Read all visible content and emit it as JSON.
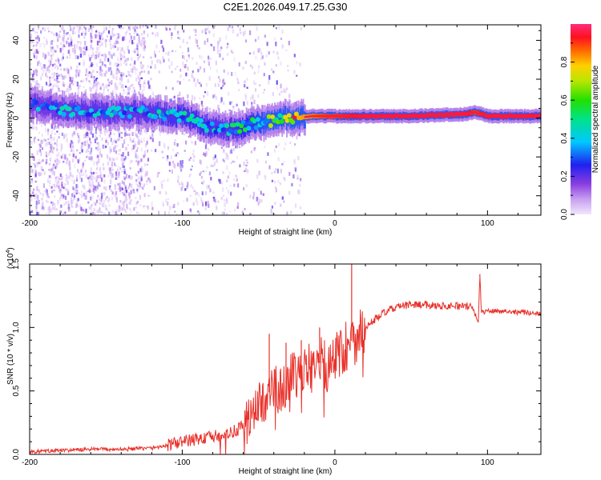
{
  "title": "C2E1.2026.049.17.25.G30",
  "colors": {
    "snr_line": "#e8312a",
    "ridge_core": "#e8204f",
    "background": "#ffffff"
  },
  "chart_data": [
    {
      "type": "heatmap",
      "xlabel": "Height of straight line (km)",
      "ylabel": "Frequency (Hz)",
      "xlim": [
        -200,
        135
      ],
      "ylim": [
        -50,
        48
      ],
      "xticks": [
        -200,
        -100,
        0,
        100
      ],
      "yticks": [
        -40,
        -20,
        0,
        20,
        40
      ],
      "xtick_labels": [
        "-200",
        "-100",
        "0",
        "100"
      ],
      "ytick_labels": [
        "-40",
        "-20",
        "0",
        "20",
        "40"
      ],
      "colorbar": {
        "label": "Normalized spectral amplitude",
        "range": [
          0.0,
          1.0
        ],
        "ticks": [
          0.0,
          0.2,
          0.4,
          0.6,
          0.8
        ],
        "tick_labels": [
          "0.0",
          "0.2",
          "0.4",
          "0.6",
          "0.8"
        ],
        "colormap": "rainbow"
      },
      "ridge": {
        "description_points_x": [
          -200,
          -175,
          -150,
          -125,
          -100,
          -85,
          -75,
          -65,
          -55,
          -45,
          -35,
          -25,
          -15,
          -5,
          0,
          20,
          50,
          85,
          92,
          100,
          135
        ],
        "center_freq_hz": [
          7,
          4,
          3,
          3,
          1,
          -4,
          -5,
          -6,
          -3,
          -2,
          0,
          0,
          1,
          1,
          1,
          1,
          1,
          2,
          3,
          1,
          1
        ],
        "peak_amplitude": [
          0.3,
          0.35,
          0.35,
          0.35,
          0.4,
          0.4,
          0.35,
          0.4,
          0.45,
          0.5,
          0.6,
          0.8,
          0.85,
          0.9,
          0.9,
          0.95,
          0.95,
          0.95,
          0.9,
          0.95,
          0.95
        ]
      }
    },
    {
      "type": "line",
      "xlabel": "Height of straight line (km)",
      "ylabel": "SNR (10 * v/v)",
      "scale_label": "(x10",
      "scale_exp": "4",
      "scale_close": ")",
      "xlim": [
        -200,
        135
      ],
      "ylim": [
        0.0,
        1.5
      ],
      "xticks": [
        -200,
        -100,
        0,
        100
      ],
      "yticks": [
        0.0,
        0.5,
        1.0,
        1.5
      ],
      "xtick_labels": [
        "-200",
        "-100",
        "0",
        "100"
      ],
      "ytick_labels": [
        "0.0",
        "0.5",
        "1.0",
        "1.5"
      ],
      "series": [
        {
          "name": "SNR",
          "x": [
            -200,
            -180,
            -160,
            -140,
            -120,
            -110,
            -100,
            -90,
            -80,
            -70,
            -60,
            -55,
            -50,
            -45,
            -40,
            -35,
            -30,
            -25,
            -20,
            -15,
            -10,
            -5,
            0,
            5,
            10,
            15,
            20,
            30,
            40,
            50,
            60,
            70,
            80,
            90,
            94,
            95,
            96,
            100,
            110,
            120,
            135
          ],
          "y": [
            0.02,
            0.03,
            0.04,
            0.04,
            0.05,
            0.07,
            0.1,
            0.12,
            0.14,
            0.16,
            0.22,
            0.3,
            0.38,
            0.45,
            0.55,
            0.5,
            0.6,
            0.58,
            0.65,
            0.7,
            0.72,
            0.7,
            0.78,
            0.82,
            0.88,
            0.95,
            1.0,
            1.1,
            1.16,
            1.18,
            1.18,
            1.17,
            1.17,
            1.16,
            1.05,
            1.4,
            1.12,
            1.13,
            1.13,
            1.12,
            1.11
          ]
        }
      ],
      "spikes": [
        {
          "x": -43,
          "y": 0.95
        },
        {
          "x": -32,
          "y": 0.88
        },
        {
          "x": -22,
          "y": 0.9
        },
        {
          "x": -10,
          "y": 1.0
        },
        {
          "x": 11,
          "y": 1.5
        },
        {
          "x": 95,
          "y": 1.42
        }
      ]
    }
  ]
}
